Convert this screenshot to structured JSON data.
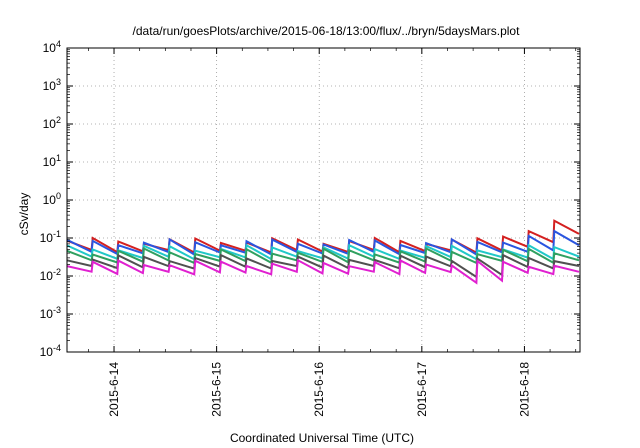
{
  "chart_data": {
    "type": "line",
    "title": "/data/run/goesPlots/archive/2015-06-18/13:00/flux/../bryn/5daysMars.plot",
    "xlabel": "Coordinated Universal Time (UTC)",
    "ylabel": "cSv/day",
    "yscale": "log",
    "ylim": [
      0.0001,
      10000
    ],
    "y_ticks": [
      {
        "base": "10",
        "exp": "-4",
        "value": 0.0001
      },
      {
        "base": "10",
        "exp": "-3",
        "value": 0.001
      },
      {
        "base": "10",
        "exp": "-2",
        "value": 0.01
      },
      {
        "base": "10",
        "exp": "-1",
        "value": 0.1
      },
      {
        "base": "10",
        "exp": "0",
        "value": 1
      },
      {
        "base": "10",
        "exp": "1",
        "value": 10
      },
      {
        "base": "10",
        "exp": "2",
        "value": 100
      },
      {
        "base": "10",
        "exp": "3",
        "value": 1000
      },
      {
        "base": "10",
        "exp": "4",
        "value": 10000
      }
    ],
    "xlim": [
      "2015-06-13 13:00",
      "2015-06-18 13:00"
    ],
    "x_ticks": [
      {
        "label": "2015-6-14",
        "day": 14
      },
      {
        "label": "2015-6-15",
        "day": 15
      },
      {
        "label": "2015-6-16",
        "day": 16
      },
      {
        "label": "2015-6-17",
        "day": 17
      },
      {
        "label": "2015-6-18",
        "day": 18
      }
    ],
    "grid": true,
    "legend": "none",
    "sawtooth_cycles_per_day": 4,
    "series": [
      {
        "color": "#d42020",
        "base": 0.045,
        "peak": 0.085
      },
      {
        "color": "#2a55e0",
        "base": 0.04,
        "peak": 0.078
      },
      {
        "color": "#20c8c8",
        "base": 0.03,
        "peak": 0.055
      },
      {
        "color": "#30a060",
        "base": 0.024,
        "peak": 0.045
      },
      {
        "color": "#505050",
        "base": 0.017,
        "peak": 0.03
      },
      {
        "color": "#e020d0",
        "base": 0.012,
        "peak": 0.022
      }
    ],
    "end_values": [
      0.25,
      0.13,
      0.055,
      0.045,
      0.03,
      0.02
    ]
  }
}
